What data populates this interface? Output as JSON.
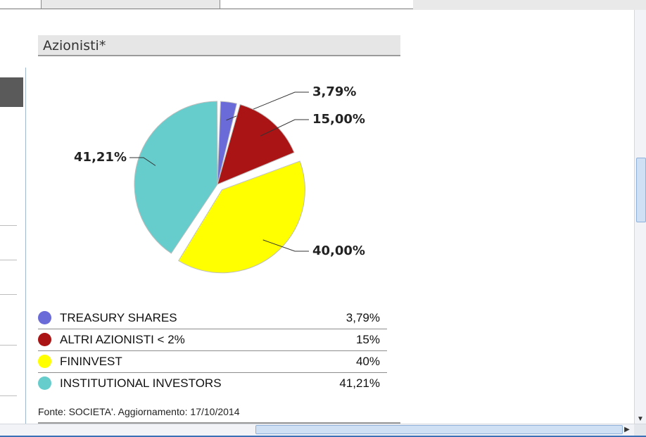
{
  "section": {
    "title": "Azionisti*"
  },
  "chart_data": {
    "type": "pie",
    "title": "",
    "categories": [
      "TREASURY SHARES",
      "ALTRI AZIONISTI < 2%",
      "FININVEST",
      "INSTITUTIONAL INVESTORS"
    ],
    "values": [
      3.79,
      15.0,
      40.0,
      41.21
    ],
    "labels": [
      "3,79%",
      "15,00%",
      "40,00%",
      "41,21%"
    ],
    "colors": [
      "#6a6ad8",
      "#aa1414",
      "#ffff00",
      "#66cccc"
    ],
    "exploded": [
      false,
      false,
      true,
      false
    ],
    "legend": "bottom"
  },
  "legend": {
    "rows": [
      {
        "label": "TREASURY SHARES",
        "value": "3,79%",
        "color": "#6a6ad8"
      },
      {
        "label": "ALTRI AZIONISTI < 2%",
        "value": "15%",
        "color": "#aa1414"
      },
      {
        "label": "FININVEST",
        "value": "40%",
        "color": "#ffff00"
      },
      {
        "label": "INSTITUTIONAL INVESTORS",
        "value": "41,21%",
        "color": "#66cccc"
      }
    ]
  },
  "footer": {
    "text": "Fonte: SOCIETA'. Aggiornamento: 17/10/2014"
  },
  "scrollbars": {
    "down_arrow": "▼",
    "right_arrow": "▶"
  }
}
